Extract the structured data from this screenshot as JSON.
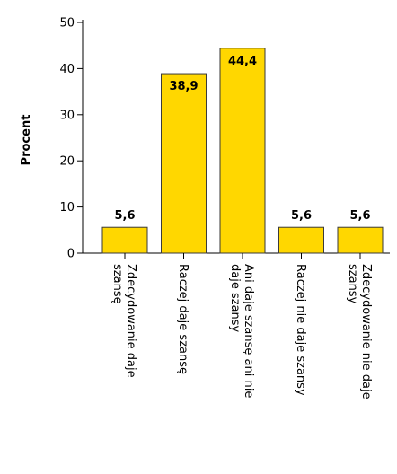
{
  "chart_data": {
    "type": "bar",
    "title": "",
    "ylabel": "Procent",
    "xlabel": "",
    "ylim": [
      0,
      50
    ],
    "yticks": [
      0,
      10,
      20,
      30,
      40,
      50
    ],
    "grid": false,
    "categories": [
      {
        "lines": [
          "Zdecydowanie daje",
          "szansę"
        ]
      },
      {
        "lines": [
          "Raczej daje szansę"
        ]
      },
      {
        "lines": [
          "Ani daje szansę ani nie",
          "daje szansy"
        ]
      },
      {
        "lines": [
          "Raczej nie daje szansy"
        ]
      },
      {
        "lines": [
          "Zdecydowanie nie daje",
          "szansy"
        ]
      }
    ],
    "values": [
      5.6,
      38.9,
      44.4,
      5.6,
      5.6
    ],
    "data_labels": [
      "5,6",
      "38,9",
      "44,4",
      "5,6",
      "5,6"
    ],
    "label_inside_top": [
      false,
      true,
      true,
      false,
      false
    ],
    "colors": {
      "bar_fill": "#FFD700",
      "bar_stroke": "#3a3a3a",
      "axis": "#000000"
    }
  }
}
